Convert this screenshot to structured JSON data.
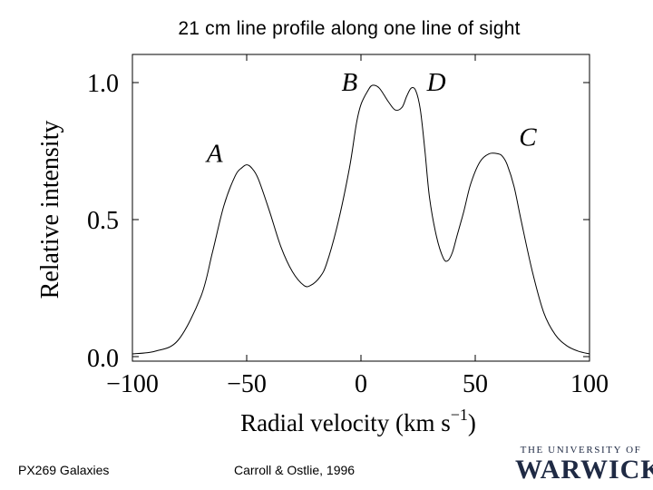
{
  "slide": {
    "title": "21 cm line profile along one line of sight",
    "footer_left": "PX269 Galaxies",
    "footer_center": "Carroll & Ostlie, 1996",
    "logo_top": "THE UNIVERSITY OF",
    "logo_bottom": "WARWICK",
    "logo_color": "#1f2a44"
  },
  "chart_data": {
    "type": "line",
    "title": "",
    "xlabel": "Radial velocity (km s",
    "xlabel_sup": "−1",
    "xlabel_close": ")",
    "ylabel": "Relative intensity",
    "xlim": [
      -100,
      100
    ],
    "ylim": [
      0.0,
      1.0
    ],
    "xticks": [
      -100,
      -50,
      0,
      50,
      100
    ],
    "xtick_labels": [
      "−100",
      "−50",
      "0",
      "50",
      "100"
    ],
    "yticks": [
      0.0,
      0.5,
      1.0
    ],
    "ytick_labels": [
      "0.0",
      "0.5",
      "1.0"
    ],
    "grid": false,
    "series": [
      {
        "x": [
          -100,
          -90,
          -80,
          -70,
          -65,
          -60,
          -55,
          -52,
          -50,
          -48,
          -45,
          -40,
          -35,
          -30,
          -25,
          -22,
          -18,
          -15,
          -10,
          -5,
          -2,
          0,
          3,
          5,
          8,
          12,
          15,
          18,
          20,
          22,
          24,
          26,
          28,
          30,
          33,
          36,
          38,
          40,
          42,
          45,
          48,
          52,
          56,
          60,
          62,
          64,
          67,
          70,
          75,
          80,
          85,
          90,
          95,
          100
        ],
        "y": [
          0.01,
          0.02,
          0.06,
          0.22,
          0.38,
          0.55,
          0.66,
          0.69,
          0.7,
          0.69,
          0.65,
          0.53,
          0.4,
          0.31,
          0.26,
          0.26,
          0.29,
          0.34,
          0.49,
          0.69,
          0.85,
          0.92,
          0.97,
          0.99,
          0.98,
          0.93,
          0.9,
          0.91,
          0.95,
          0.98,
          0.97,
          0.9,
          0.75,
          0.58,
          0.44,
          0.36,
          0.35,
          0.38,
          0.44,
          0.53,
          0.63,
          0.71,
          0.74,
          0.74,
          0.73,
          0.7,
          0.62,
          0.5,
          0.31,
          0.16,
          0.08,
          0.04,
          0.02,
          0.01
        ]
      }
    ],
    "annotations": [
      {
        "text": "A",
        "x": -64,
        "y": 0.71
      },
      {
        "text": "B",
        "x": -5,
        "y": 0.97
      },
      {
        "text": "D",
        "x": 33,
        "y": 0.97
      },
      {
        "text": "C",
        "x": 73,
        "y": 0.77
      }
    ]
  }
}
